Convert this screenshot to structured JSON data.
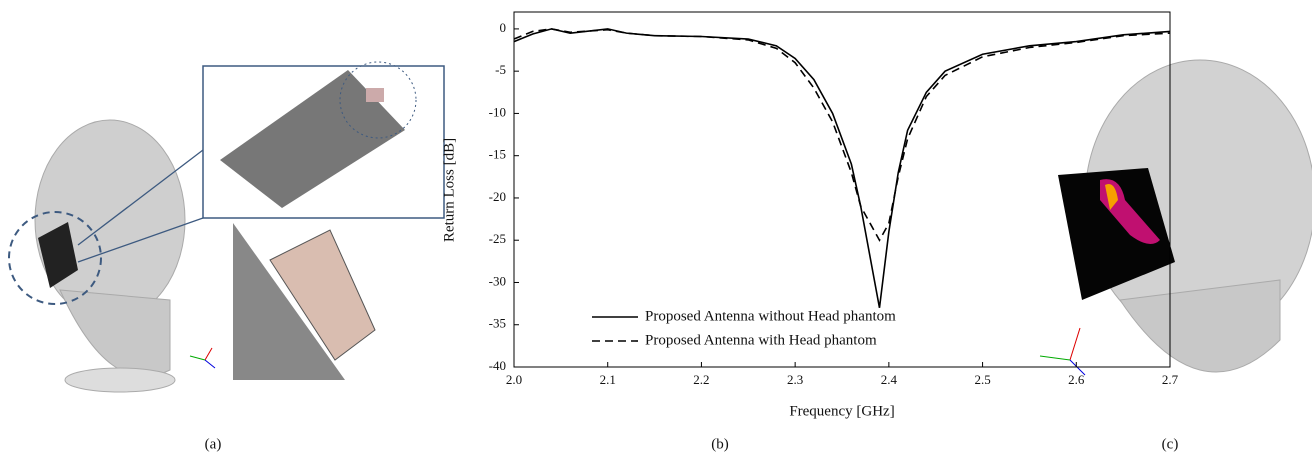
{
  "panel_labels": [
    "(a)",
    "(b)",
    "(c)"
  ],
  "chart_data": {
    "type": "line",
    "x_label": "Frequency [GHz]",
    "y_label": "Return Loss [dB]",
    "x": [
      2.0,
      2.02,
      2.04,
      2.06,
      2.1,
      2.12,
      2.15,
      2.2,
      2.25,
      2.28,
      2.3,
      2.32,
      2.34,
      2.36,
      2.37,
      2.38,
      2.39,
      2.4,
      2.41,
      2.42,
      2.44,
      2.46,
      2.5,
      2.55,
      2.6,
      2.65,
      2.7
    ],
    "series": [
      {
        "name": "Proposed Antenna without Head phantom",
        "color": "#000000",
        "dash": "solid",
        "values": [
          -1.5,
          -0.6,
          0,
          -0.5,
          0,
          -0.5,
          -0.8,
          -0.9,
          -1.2,
          -2,
          -3.5,
          -6,
          -10,
          -16,
          -21,
          -27,
          -33,
          -24,
          -17,
          -12,
          -7.5,
          -5,
          -3,
          -2,
          -1.5,
          -0.7,
          -0.3
        ]
      },
      {
        "name": "Proposed Antenna with Head phantom",
        "color": "#000000",
        "dash": "dashed",
        "values": [
          -1.2,
          -0.3,
          0,
          -0.4,
          -0.1,
          -0.5,
          -0.8,
          -0.9,
          -1.3,
          -2.3,
          -4,
          -7,
          -11,
          -17,
          -21,
          -23,
          -25,
          -23,
          -17.5,
          -13,
          -8,
          -5.5,
          -3.3,
          -2.2,
          -1.6,
          -0.8,
          -0.5
        ]
      }
    ],
    "xlim": [
      2.0,
      2.7
    ],
    "xticks": [
      {
        "value": 2.0,
        "label": "2.0"
      },
      2.1,
      2.2,
      2.3,
      2.4,
      2.5,
      2.6,
      2.7
    ],
    "ylim": [
      -40,
      2
    ],
    "yticks": [
      0,
      -5,
      -10,
      -15,
      -20,
      -25,
      -30,
      -35,
      -40
    ],
    "legend": "lower-right"
  }
}
